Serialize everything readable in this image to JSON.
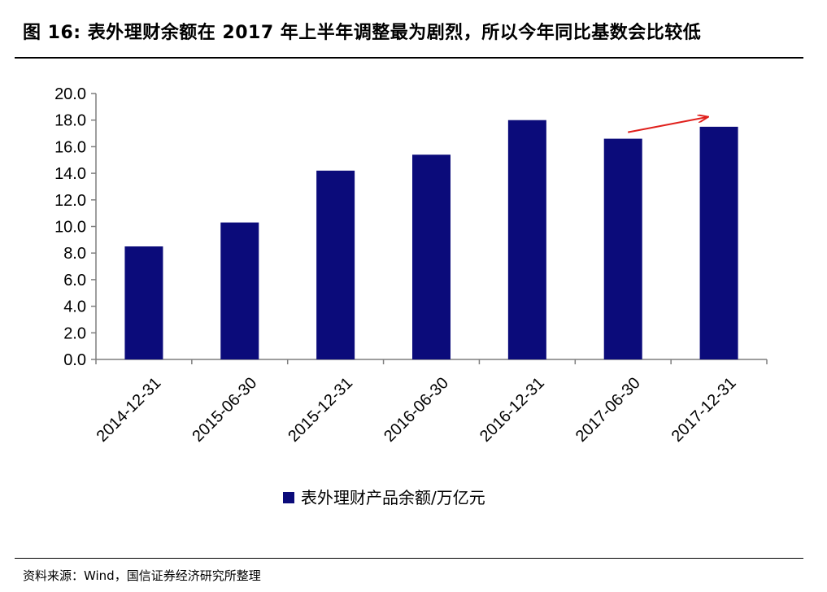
{
  "figure": {
    "title": "图 16:  表外理财余额在 2017 年上半年调整最为剧烈，所以今年同比基数会比较低",
    "source": "资料来源：Wind，国信证券经济研究所整理"
  },
  "colors": {
    "bar": "#0B0B7A",
    "arrow": "#E0201C",
    "axis": "#7F7F7F"
  },
  "chart_data": {
    "type": "bar",
    "categories": [
      "2014-12-31",
      "2015-06-30",
      "2015-12-31",
      "2016-06-30",
      "2016-12-31",
      "2017-06-30",
      "2017-12-31"
    ],
    "series": [
      {
        "name": "表外理财产品余额/万亿元",
        "values": [
          8.5,
          10.3,
          14.2,
          15.4,
          18.0,
          16.6,
          17.5
        ]
      }
    ],
    "ylim": [
      0,
      20
    ],
    "yticks": [
      "0.0",
      "2.0",
      "4.0",
      "6.0",
      "8.0",
      "10.0",
      "12.0",
      "14.0",
      "16.0",
      "18.0",
      "20.0"
    ],
    "legend_position": "bottom",
    "grid": false,
    "annotation": "red-arrow-upward-2017"
  }
}
